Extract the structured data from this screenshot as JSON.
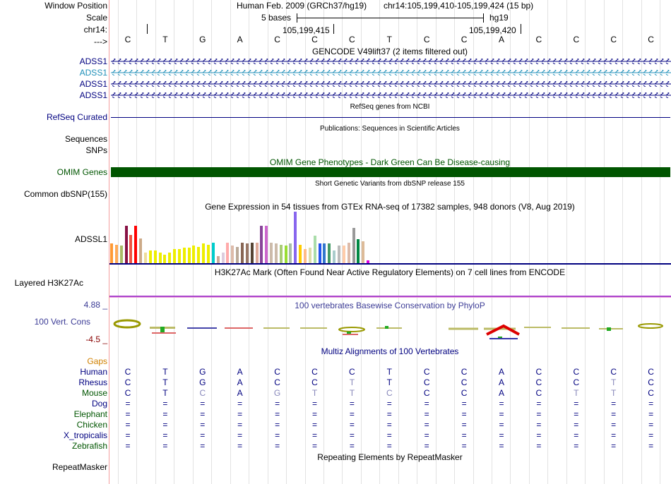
{
  "window_position": {
    "label": "Window Position",
    "assembly": "Human Feb. 2009 (GRCh37/hg19)",
    "range": "chr14:105,199,410-105,199,424 (15 bp)"
  },
  "scale": {
    "label": "Scale",
    "length": "5 bases",
    "assembly": "hg19"
  },
  "chrom": {
    "label": "chr14:",
    "tick1": "105,199,415",
    "tick2": "105,199,420"
  },
  "bases_row": {
    "label": "--->",
    "bases": [
      "C",
      "T",
      "G",
      "A",
      "C",
      "C",
      "C",
      "T",
      "C",
      "C",
      "A",
      "C",
      "C",
      "C",
      "C"
    ]
  },
  "gencode": {
    "title": "GENCODE V49lift37 (2 items filtered out)",
    "transcripts": [
      "ADSS1",
      "ADSS1",
      "ADSS1",
      "ADSS1"
    ]
  },
  "refseq": {
    "label": "RefSeq Curated",
    "title": "RefSeq genes from NCBI"
  },
  "publications": {
    "title": "Publications: Sequences in Scientific Articles",
    "label1": "Sequences",
    "label2": "SNPs"
  },
  "omim": {
    "title": "OMIM Gene Phenotypes - Dark Green Can Be Disease-causing",
    "label": "OMIM Genes",
    "color": "#005500"
  },
  "dbsnp": {
    "label": "Common dbSNP(155)",
    "title": "Short Genetic Variants from dbSNP release 155"
  },
  "gtex": {
    "title": "Gene Expression in 54 tissues from GTEx RNA-seq of 17382 samples, 948 donors (V8, Aug 2019)",
    "label": "ADSSL1",
    "bars": [
      {
        "v": 0.38,
        "c": "#ff9933"
      },
      {
        "v": 0.36,
        "c": "#ffaa55"
      },
      {
        "v": 0.34,
        "c": "#aabb66"
      },
      {
        "v": 0.72,
        "c": "#881144"
      },
      {
        "v": 0.55,
        "c": "#ee5544"
      },
      {
        "v": 0.73,
        "c": "#ff0000"
      },
      {
        "v": 0.48,
        "c": "#ccaa88"
      },
      {
        "v": 0.2,
        "c": "#eedd99"
      },
      {
        "v": 0.24,
        "c": "#eeee00"
      },
      {
        "v": 0.24,
        "c": "#eeee00"
      },
      {
        "v": 0.2,
        "c": "#eeee00"
      },
      {
        "v": 0.16,
        "c": "#eeee00"
      },
      {
        "v": 0.2,
        "c": "#eeee00"
      },
      {
        "v": 0.28,
        "c": "#eeee00"
      },
      {
        "v": 0.28,
        "c": "#eeee00"
      },
      {
        "v": 0.3,
        "c": "#eeee00"
      },
      {
        "v": 0.3,
        "c": "#eeee00"
      },
      {
        "v": 0.34,
        "c": "#eeee00"
      },
      {
        "v": 0.32,
        "c": "#eeee00"
      },
      {
        "v": 0.38,
        "c": "#eeee00"
      },
      {
        "v": 0.36,
        "c": "#eeee00"
      },
      {
        "v": 0.4,
        "c": "#00cccc"
      },
      {
        "v": 0.14,
        "c": "#ccaa99"
      },
      {
        "v": 0.2,
        "c": "#ddccdd"
      },
      {
        "v": 0.4,
        "c": "#ffaaaa"
      },
      {
        "v": 0.34,
        "c": "#ddbbaa"
      },
      {
        "v": 0.32,
        "c": "#bbaa99"
      },
      {
        "v": 0.4,
        "c": "#886655"
      },
      {
        "v": 0.38,
        "c": "#997766"
      },
      {
        "v": 0.4,
        "c": "#554433"
      },
      {
        "v": 0.4,
        "c": "#ddaa99"
      },
      {
        "v": 0.72,
        "c": "#884499"
      },
      {
        "v": 0.72,
        "c": "#cc66cc"
      },
      {
        "v": 0.4,
        "c": "#ccbbaa"
      },
      {
        "v": 0.38,
        "c": "#ccbbaa"
      },
      {
        "v": 0.36,
        "c": "#aacc77"
      },
      {
        "v": 0.34,
        "c": "#99dd33"
      },
      {
        "v": 0.38,
        "c": "#aabbaa"
      },
      {
        "v": 1.0,
        "c": "#8866ee"
      },
      {
        "v": 0.36,
        "c": "#ffcc00"
      },
      {
        "v": 0.28,
        "c": "#ffbb88"
      },
      {
        "v": 0.3,
        "c": "#ddddaa"
      },
      {
        "v": 0.53,
        "c": "#aaddaa"
      },
      {
        "v": 0.38,
        "c": "#2255ee"
      },
      {
        "v": 0.38,
        "c": "#3377cc"
      },
      {
        "v": 0.38,
        "c": "#449966"
      },
      {
        "v": 0.24,
        "c": "#aacccc"
      },
      {
        "v": 0.34,
        "c": "#bbbbbb"
      },
      {
        "v": 0.34,
        "c": "#ffccaa"
      },
      {
        "v": 0.4,
        "c": "#ddbbaa"
      },
      {
        "v": 0.68,
        "c": "#999999"
      },
      {
        "v": 0.46,
        "c": "#008844"
      },
      {
        "v": 0.42,
        "c": "#ddbb99"
      },
      {
        "v": 0.06,
        "c": "#dd00dd"
      }
    ]
  },
  "h3k27ac": {
    "title": "H3K27Ac Mark (Often Found Near Active Regulatory Elements) on 7 cell lines from ENCODE",
    "label": "Layered H3K27Ac"
  },
  "phylop": {
    "title": "100 vertebrates Basewise Conservation by PhyloP",
    "label": "100 Vert. Cons",
    "max": "4.88 _",
    "min": "-4.5 _"
  },
  "multiz": {
    "title": "Multiz Alignments of 100 Vertebrates",
    "gaps_label": "Gaps",
    "species": [
      {
        "name": "Human",
        "color": "#000080",
        "bases": [
          "C",
          "T",
          "G",
          "A",
          "C",
          "C",
          "C",
          "T",
          "C",
          "C",
          "A",
          "C",
          "C",
          "C",
          "C"
        ],
        "dim": []
      },
      {
        "name": "Rhesus",
        "color": "#000080",
        "bases": [
          "C",
          "T",
          "G",
          "A",
          "C",
          "C",
          "T",
          "T",
          "C",
          "C",
          "A",
          "C",
          "C",
          "T",
          "C"
        ],
        "dim": [
          6,
          13
        ]
      },
      {
        "name": "Mouse",
        "color": "#005500",
        "bases": [
          "C",
          "T",
          "C",
          "A",
          "G",
          "T",
          "T",
          "C",
          "C",
          "C",
          "A",
          "C",
          "T",
          "T",
          "C"
        ],
        "dim": [
          2,
          4,
          5,
          6,
          7,
          12,
          13
        ]
      },
      {
        "name": "Dog",
        "color": "#000080",
        "bases": [
          "=",
          "=",
          "=",
          "=",
          "=",
          "=",
          "=",
          "=",
          "=",
          "=",
          "=",
          "=",
          "=",
          "=",
          "="
        ],
        "dim": []
      },
      {
        "name": "Elephant",
        "color": "#005500",
        "bases": [
          "=",
          "=",
          "=",
          "=",
          "=",
          "=",
          "=",
          "=",
          "=",
          "=",
          "=",
          "=",
          "=",
          "=",
          "="
        ],
        "dim": []
      },
      {
        "name": "Chicken",
        "color": "#005500",
        "bases": [
          "=",
          "=",
          "=",
          "=",
          "=",
          "=",
          "=",
          "=",
          "=",
          "=",
          "=",
          "=",
          "=",
          "=",
          "="
        ],
        "dim": []
      },
      {
        "name": "X_tropicalis",
        "color": "#000080",
        "bases": [
          "=",
          "=",
          "=",
          "=",
          "=",
          "=",
          "=",
          "=",
          "=",
          "=",
          "=",
          "=",
          "=",
          "=",
          "="
        ],
        "dim": []
      },
      {
        "name": "Zebrafish",
        "color": "#005500",
        "bases": [
          "=",
          "=",
          "=",
          "=",
          "=",
          "=",
          "=",
          "=",
          "=",
          "=",
          "=",
          "=",
          "=",
          "=",
          "="
        ],
        "dim": []
      }
    ]
  },
  "repeatmasker": {
    "title": "Repeating Elements by RepeatMasker",
    "label": "RepeatMasker"
  },
  "colors": {
    "navy": "#000080",
    "blue_link": "#1e5fa8",
    "omim_green": "#005500",
    "gaps_orange": "#d08000",
    "phylop_blue": "#3c3c96",
    "h3k27ac_purple": "#aa44cc"
  }
}
